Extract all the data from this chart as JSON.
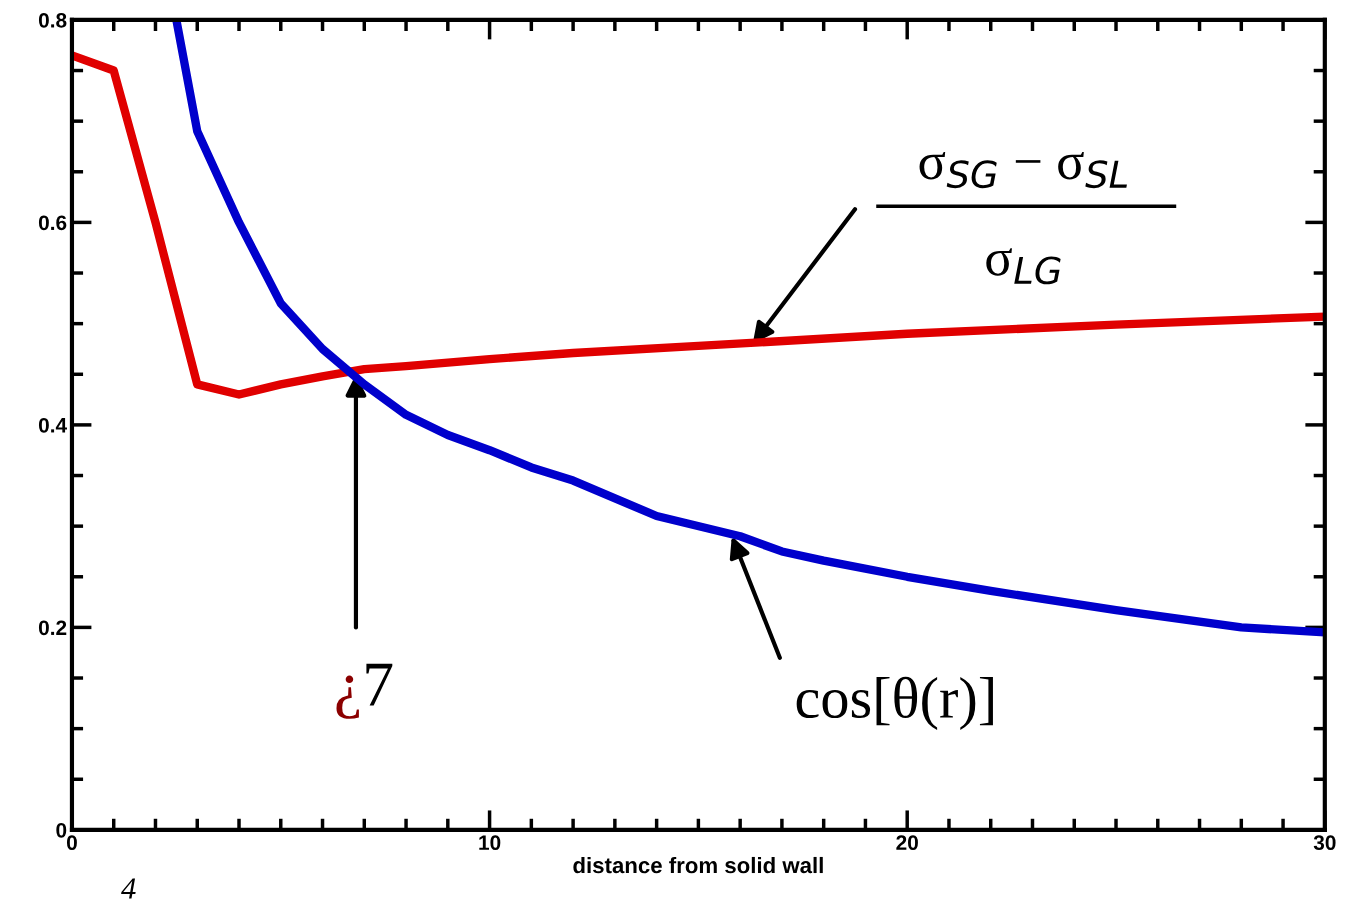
{
  "chart_data": {
    "type": "line",
    "xlabel": "distance from solid wall",
    "xlim": [
      0,
      30
    ],
    "xticks": [
      0,
      10,
      20,
      30
    ],
    "ylim": [
      0,
      0.8
    ],
    "yticks": [
      0,
      0.2,
      0.4,
      0.6,
      0.8
    ],
    "grid": false,
    "legend": false,
    "marker": "none",
    "line_style": "solid",
    "series": [
      {
        "color": "#e00000",
        "x": [
          0,
          1,
          2,
          3,
          4,
          5,
          6,
          7,
          8,
          10,
          12,
          15,
          20,
          25,
          30
        ],
        "values": [
          0.765,
          0.75,
          0.6,
          0.44,
          0.43,
          0.44,
          0.448,
          0.455,
          0.458,
          0.465,
          0.471,
          0.478,
          0.49,
          0.499,
          0.507
        ]
      },
      {
        "color": "#0000cc",
        "x": [
          2.5,
          3,
          4,
          5,
          6,
          7,
          8,
          9,
          10,
          11,
          12,
          14,
          16,
          17,
          18,
          20,
          22,
          25,
          28,
          30
        ],
        "values": [
          0.8,
          0.69,
          0.6,
          0.52,
          0.475,
          0.44,
          0.41,
          0.39,
          0.375,
          0.358,
          0.345,
          0.31,
          0.29,
          0.275,
          0.266,
          0.25,
          0.236,
          0.217,
          0.2,
          0.195
        ]
      }
    ],
    "annotations": [
      {
        "text": "σ$_{SG}$ − σ$_{SL}$",
        "x": 16.3,
        "y": 0.48
      },
      "σ$_{LG}$",
      {
        "text": "¿7",
        "x": 6.8,
        "y": 0.45
      },
      {
        "text": "cos[θ(r)]",
        "x": 15.8,
        "y": 0.29
      },
      "4"
    ]
  }
}
